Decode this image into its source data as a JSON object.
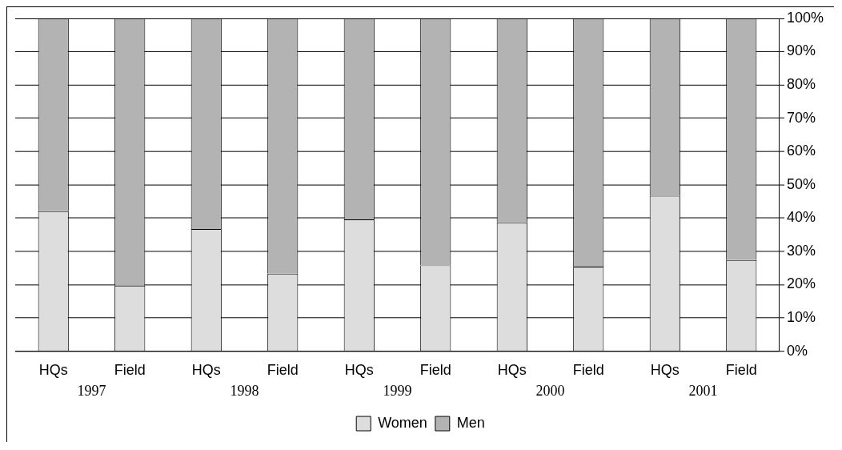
{
  "chart_data": {
    "type": "bar",
    "stacked": true,
    "categories": [
      "HQs",
      "Field",
      "HQs",
      "Field",
      "HQs",
      "Field",
      "HQs",
      "Field",
      "HQs",
      "Field"
    ],
    "series": [
      {
        "name": "Women",
        "color": "#dddddd",
        "values": [
          42.1,
          19.7,
          36.7,
          23.3,
          39.6,
          25.8,
          38.7,
          25.4,
          46.7,
          27.4
        ]
      },
      {
        "name": "Men",
        "color": "#b3b3b3",
        "values": [
          57.9,
          80.3,
          63.3,
          76.7,
          60.4,
          74.2,
          61.3,
          74.6,
          53.3,
          72.6
        ]
      }
    ],
    "ylim": [
      0,
      100
    ],
    "yticks": [
      {
        "value": 0,
        "label": "0%"
      },
      {
        "value": 10,
        "label": "10%"
      },
      {
        "value": 20,
        "label": "20%"
      },
      {
        "value": 30,
        "label": "30%"
      },
      {
        "value": 40,
        "label": "40%"
      },
      {
        "value": 50,
        "label": "50%"
      },
      {
        "value": 60,
        "label": "60%"
      },
      {
        "value": 70,
        "label": "70%"
      },
      {
        "value": 80,
        "label": "80%"
      },
      {
        "value": 90,
        "label": "90%"
      },
      {
        "value": 100,
        "label": "100%"
      }
    ],
    "grid": "y",
    "legend": "bottom",
    "annotations": [
      "1997",
      "1998",
      "1999",
      "2000",
      "2001"
    ]
  }
}
